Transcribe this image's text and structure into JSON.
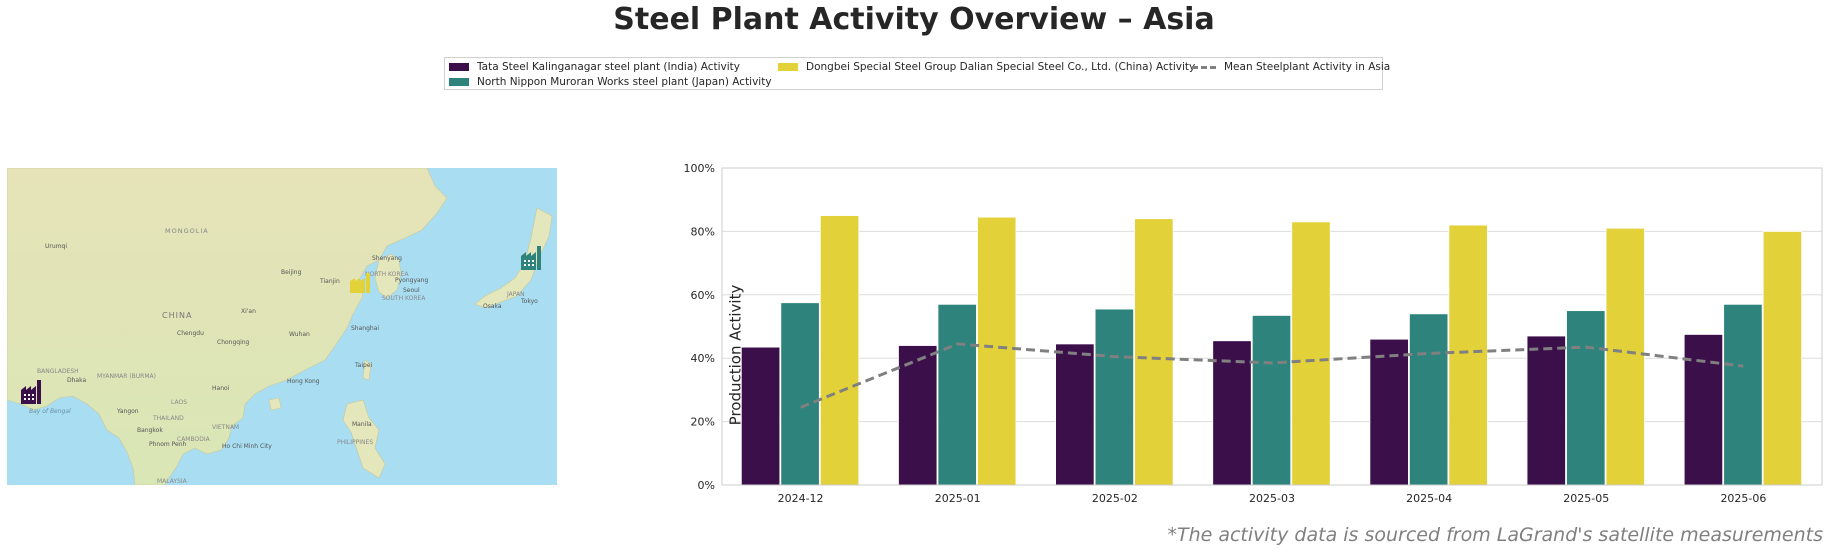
{
  "title": "Steel Plant Activity Overview – Asia",
  "footnote": "*The activity data is sourced from LaGrand's satellite measurements",
  "map": {
    "labels": [
      "MONGOLIA",
      "Urumqi",
      "Beijing",
      "Tianjin",
      "Shenyang",
      "NORTH KOREA",
      "Pyongyang",
      "Seoul",
      "SOUTH KOREA",
      "JAPAN",
      "Osaka",
      "Tokyo",
      "CHINA",
      "Xi'an",
      "Chengdu",
      "Chongqing",
      "Wuhan",
      "Shanghai",
      "BANGLADESH",
      "Dhaka",
      "MYANMAR (BURMA)",
      "Bay of Bengal",
      "Hanoi",
      "Hong Kong",
      "Taipei",
      "LAOS",
      "Yangon",
      "THAILAND",
      "VIETNAM",
      "Bangkok",
      "CAMBODIA",
      "Phnom Penh",
      "Ho Chi Minh City",
      "Manila",
      "PHILIPPINES",
      "MALAYSIA"
    ],
    "markers": [
      {
        "name": "factory-icon-india",
        "color": "#3b0f4a"
      },
      {
        "name": "factory-icon-china",
        "color": "#e3d13a"
      },
      {
        "name": "factory-icon-japan",
        "color": "#2e837c"
      }
    ]
  },
  "chart_data": {
    "type": "bar",
    "title": "",
    "xlabel": "",
    "ylabel": "Production Activity",
    "ylim": [
      0,
      100
    ],
    "yticks": [
      "0%",
      "20%",
      "40%",
      "60%",
      "80%",
      "100%"
    ],
    "grid": true,
    "legend_position": "top-center",
    "categories": [
      "2024-12",
      "2025-01",
      "2025-02",
      "2025-03",
      "2025-04",
      "2025-05",
      "2025-06"
    ],
    "series": [
      {
        "name": "Tata Steel Kalinganagar steel plant (India) Activity",
        "type": "bar",
        "color": "#3b0f4a",
        "values": [
          43.5,
          44,
          44.5,
          45.5,
          46,
          47,
          47.5
        ]
      },
      {
        "name": "North Nippon Muroran Works steel plant (Japan) Activity",
        "type": "bar",
        "color": "#2e837c",
        "values": [
          57.5,
          57,
          55.5,
          53.5,
          54,
          55,
          57
        ]
      },
      {
        "name": "Dongbei Special Steel Group Dalian Special Steel Co., Ltd. (China) Activity",
        "type": "bar",
        "color": "#e3d13a",
        "values": [
          85,
          84.5,
          84,
          83,
          82,
          81,
          80
        ]
      },
      {
        "name": "Mean Steelplant Activity in Asia",
        "type": "line",
        "color": "#808080",
        "values": [
          24.5,
          44.5,
          40.5,
          38.5,
          41.5,
          43.5,
          37.5
        ]
      }
    ]
  }
}
